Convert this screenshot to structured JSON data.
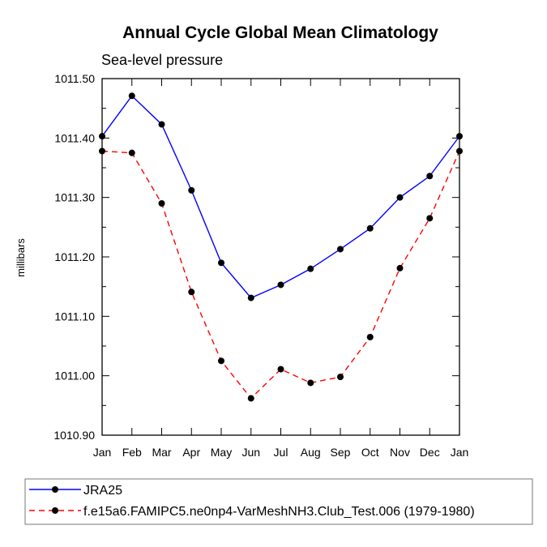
{
  "chart_data": {
    "type": "line",
    "title": "Annual Cycle Global Mean Climatology",
    "subtitle": "Sea-level pressure",
    "xlabel": "",
    "ylabel": "millibars",
    "categories": [
      "Jan",
      "Feb",
      "Mar",
      "Apr",
      "May",
      "Jun",
      "Jul",
      "Aug",
      "Sep",
      "Oct",
      "Nov",
      "Dec",
      "Jan"
    ],
    "ylim": [
      1010.9,
      1011.5
    ],
    "yticks": [
      "1010.90",
      "1011.00",
      "1011.10",
      "1011.20",
      "1011.30",
      "1011.40",
      "1011.50"
    ],
    "ytick_values": [
      1010.9,
      1011.0,
      1011.1,
      1011.2,
      1011.3,
      1011.4,
      1011.5
    ],
    "grid": false,
    "legend_position": "bottom",
    "series": [
      {
        "name": "JRA25",
        "color": "#0000ff",
        "dash": "solid",
        "values": [
          1011.403,
          1011.471,
          1011.423,
          1011.312,
          1011.19,
          1011.131,
          1011.153,
          1011.18,
          1011.213,
          1011.248,
          1011.3,
          1011.336,
          1011.403
        ]
      },
      {
        "name": "f.e15a6.FAMIPC5.ne0np4-VarMeshNH3.Club_Test.006 (1979-1980)",
        "color": "#ff0000",
        "dash": "dashed",
        "values": [
          1011.378,
          1011.375,
          1011.29,
          1011.141,
          1011.025,
          1010.962,
          1011.011,
          1010.988,
          1010.998,
          1011.065,
          1011.181,
          1011.265,
          1011.378
        ]
      }
    ]
  }
}
